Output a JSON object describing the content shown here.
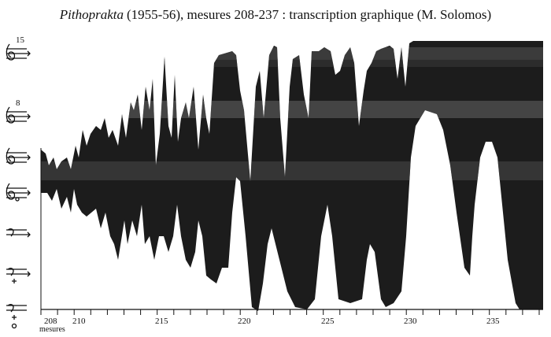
{
  "title": {
    "work": "Pithoprakta",
    "rest": "(1955-56), mesures 208-237 : transcription graphique (M. Solomos)"
  },
  "clefs": {
    "upper_octave": "15",
    "lower_octave": "8"
  },
  "axis": {
    "labels": [
      "208",
      "210",
      "215",
      "220",
      "225",
      "230",
      "235"
    ],
    "caption": "mesures"
  }
}
